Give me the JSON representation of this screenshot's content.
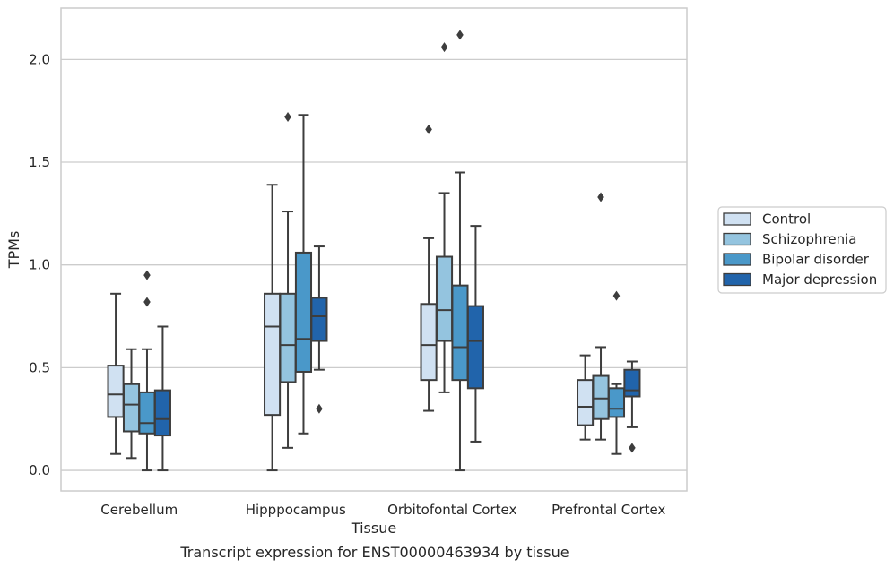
{
  "chart_data": {
    "type": "box",
    "xlabel": "Tissue",
    "ylabel": "TPMs",
    "caption": "Transcript expression for ENST00000463934 by tissue",
    "ylim": [
      -0.1,
      2.25
    ],
    "yticks": [
      0.0,
      0.5,
      1.0,
      1.5,
      2.0
    ],
    "ytick_labels": [
      "0.0",
      "0.5",
      "1.0",
      "1.5",
      "2.0"
    ],
    "grid": "horizontal",
    "legend_position": "right",
    "categories": [
      "Cerebellum",
      "Hipppocampus",
      "Orbitofontal Cortex",
      "Prefrontal Cortex"
    ],
    "series": [
      {
        "name": "Control",
        "color": "#d0e1f2",
        "boxes": [
          {
            "whislo": 0.08,
            "q1": 0.26,
            "med": 0.37,
            "q3": 0.51,
            "whishi": 0.86,
            "fliers": []
          },
          {
            "whislo": 0.0,
            "q1": 0.27,
            "med": 0.7,
            "q3": 0.86,
            "whishi": 1.39,
            "fliers": []
          },
          {
            "whislo": 0.29,
            "q1": 0.44,
            "med": 0.61,
            "q3": 0.81,
            "whishi": 1.13,
            "fliers": [
              1.66
            ]
          },
          {
            "whislo": 0.15,
            "q1": 0.22,
            "med": 0.31,
            "q3": 0.44,
            "whishi": 0.56,
            "fliers": []
          }
        ]
      },
      {
        "name": "Schizophrenia",
        "color": "#94c4df",
        "boxes": [
          {
            "whislo": 0.06,
            "q1": 0.19,
            "med": 0.32,
            "q3": 0.42,
            "whishi": 0.59,
            "fliers": []
          },
          {
            "whislo": 0.11,
            "q1": 0.43,
            "med": 0.61,
            "q3": 0.86,
            "whishi": 1.26,
            "fliers": [
              1.72
            ]
          },
          {
            "whislo": 0.38,
            "q1": 0.63,
            "med": 0.78,
            "q3": 1.04,
            "whishi": 1.35,
            "fliers": [
              2.06
            ]
          },
          {
            "whislo": 0.15,
            "q1": 0.25,
            "med": 0.35,
            "q3": 0.46,
            "whishi": 0.6,
            "fliers": [
              1.33
            ]
          }
        ]
      },
      {
        "name": "Bipolar disorder",
        "color": "#4a98c9",
        "boxes": [
          {
            "whislo": 0.0,
            "q1": 0.18,
            "med": 0.23,
            "q3": 0.38,
            "whishi": 0.59,
            "fliers": [
              0.82,
              0.95
            ]
          },
          {
            "whislo": 0.18,
            "q1": 0.48,
            "med": 0.64,
            "q3": 1.06,
            "whishi": 1.73,
            "fliers": []
          },
          {
            "whislo": 0.0,
            "q1": 0.44,
            "med": 0.6,
            "q3": 0.9,
            "whishi": 1.45,
            "fliers": [
              2.12
            ]
          },
          {
            "whislo": 0.08,
            "q1": 0.26,
            "med": 0.3,
            "q3": 0.4,
            "whishi": 0.42,
            "fliers": [
              0.85
            ]
          }
        ]
      },
      {
        "name": "Major depression",
        "color": "#2164ab",
        "boxes": [
          {
            "whislo": 0.0,
            "q1": 0.17,
            "med": 0.25,
            "q3": 0.39,
            "whishi": 0.7,
            "fliers": []
          },
          {
            "whislo": 0.49,
            "q1": 0.63,
            "med": 0.75,
            "q3": 0.84,
            "whishi": 1.09,
            "fliers": [
              0.3
            ]
          },
          {
            "whislo": 0.14,
            "q1": 0.4,
            "med": 0.63,
            "q3": 0.8,
            "whishi": 1.19,
            "fliers": []
          },
          {
            "whislo": 0.21,
            "q1": 0.36,
            "med": 0.39,
            "q3": 0.49,
            "whishi": 0.53,
            "fliers": [
              0.11
            ]
          }
        ]
      }
    ]
  }
}
